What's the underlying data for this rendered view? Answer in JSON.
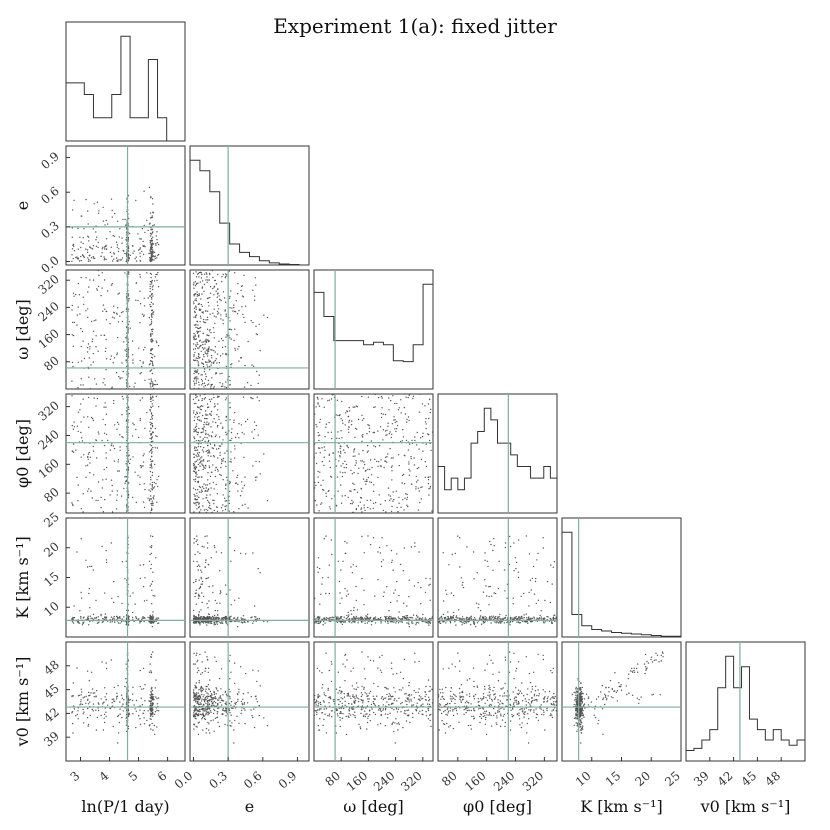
{
  "title": "Experiment 1(a): fixed jitter",
  "chart_data": {
    "type": "corner",
    "title": "Experiment 1(a): fixed jitter",
    "params": [
      {
        "key": "lnP",
        "label": "ln(P/1 day)",
        "range": [
          2.5,
          6.6
        ],
        "ticks": [
          "3",
          "4",
          "5",
          "6"
        ],
        "tickVals": [
          3,
          4,
          5,
          6
        ],
        "truth": 4.62
      },
      {
        "key": "e",
        "label": "e",
        "range": [
          -0.03,
          1.0
        ],
        "ticks": [
          "0.0",
          "0.3",
          "0.6",
          "0.9"
        ],
        "tickVals": [
          0.0,
          0.3,
          0.6,
          0.9
        ],
        "truth": 0.3
      },
      {
        "key": "omega",
        "label": "ω [deg]",
        "range": [
          0,
          350
        ],
        "ticks": [
          "80",
          "160",
          "240",
          "320"
        ],
        "tickVals": [
          80,
          160,
          240,
          320
        ],
        "truth": 62
      },
      {
        "key": "phi0",
        "label": "φ0 [deg]",
        "range": [
          25,
          355
        ],
        "ticks": [
          "80",
          "160",
          "240",
          "320"
        ],
        "tickVals": [
          80,
          160,
          240,
          320
        ],
        "truth": 220
      },
      {
        "key": "K",
        "label": "K [km s⁻¹]",
        "range": [
          5,
          25
        ],
        "ticks": [
          "10",
          "15",
          "20",
          "25"
        ],
        "tickVals": [
          10,
          15,
          20,
          25
        ],
        "truth": 7.8
      },
      {
        "key": "v0",
        "label": "v0 [km s⁻¹]",
        "range": [
          36,
          51
        ],
        "ticks": [
          "39",
          "42",
          "45",
          "48"
        ],
        "tickVals": [
          39,
          42,
          45,
          48
        ],
        "truth": 42.8
      }
    ],
    "histograms": [
      [
        5,
        5,
        4,
        2,
        2,
        4,
        9,
        2,
        2,
        7,
        2,
        0,
        0
      ],
      [
        10,
        9,
        7,
        4,
        2,
        1.2,
        0.8,
        0.4,
        0.2,
        0.1,
        0.05,
        0
      ],
      [
        12,
        9,
        6,
        6,
        6,
        5.5,
        5.8,
        5.5,
        3.5,
        3.4,
        5.5,
        13
      ],
      [
        4,
        2,
        3,
        2,
        3,
        6,
        7,
        9,
        8,
        6,
        6,
        5,
        4,
        4,
        3,
        3,
        4,
        3
      ],
      [
        14,
        3,
        1.5,
        1,
        0.8,
        0.6,
        0.5,
        0.4,
        0.3,
        0.2,
        0.1,
        0.1
      ],
      [
        1,
        1.2,
        2,
        3,
        7,
        10,
        7,
        9,
        4,
        3,
        2,
        3,
        2,
        1.5,
        2
      ]
    ],
    "truth_line_color": "#7fad9f",
    "point_color": "#555555",
    "line_color": "#333333"
  }
}
